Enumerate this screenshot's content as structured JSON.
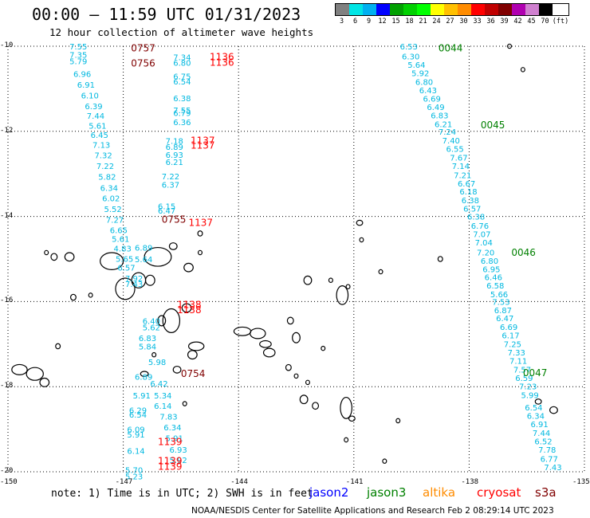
{
  "title": "00:00 – 11:59 UTC 01/31/2023",
  "subtitle": "12 hour collection of altimeter wave heights",
  "legend": {
    "swatch_colors": [
      "#808080",
      "#00e5e5",
      "#00b0f0",
      "#0000ff",
      "#00a000",
      "#00d000",
      "#00ff00",
      "#ffff00",
      "#ffc000",
      "#ff8c00",
      "#ff0000",
      "#c00000",
      "#800000",
      "#b000b0",
      "#d080d0",
      "#000000"
    ],
    "labels": [
      "3",
      "6",
      "9",
      "12",
      "15",
      "18",
      "21",
      "24",
      "27",
      "30",
      "33",
      "36",
      "39",
      "42",
      "45",
      "70",
      "(ft)"
    ]
  },
  "map": {
    "lon_range": [
      -150,
      -135
    ],
    "lat_range": [
      -20,
      -10
    ],
    "x_ticks": [
      "-150",
      "-147",
      "-144",
      "-141",
      "-138",
      "-135"
    ],
    "y_ticks": [
      "-10",
      "-12",
      "-14",
      "-16",
      "-18",
      "-20"
    ]
  },
  "time_labels": [
    {
      "text": "0757",
      "lon": -146.8,
      "lat": -10.05,
      "color": "#800000"
    },
    {
      "text": "0756",
      "lon": -146.8,
      "lat": -10.4,
      "color": "#800000"
    },
    {
      "text": "1136",
      "lon": -144.75,
      "lat": -10.25,
      "color": "#ff0000"
    },
    {
      "text": "1136",
      "lon": -144.75,
      "lat": -10.38,
      "color": "#ff0000"
    },
    {
      "text": "0044",
      "lon": -138.8,
      "lat": -10.05,
      "color": "#008000"
    },
    {
      "text": "0045",
      "lon": -137.7,
      "lat": -11.85,
      "color": "#008000"
    },
    {
      "text": "1137",
      "lon": -145.25,
      "lat": -12.22,
      "color": "#ff0000"
    },
    {
      "text": "1137",
      "lon": -145.25,
      "lat": -12.33,
      "color": "#ff0000"
    },
    {
      "text": "0755",
      "lon": -146.0,
      "lat": -14.07,
      "color": "#800000"
    },
    {
      "text": "1137",
      "lon": -145.3,
      "lat": -14.15,
      "color": "#ff0000"
    },
    {
      "text": "0046",
      "lon": -136.9,
      "lat": -14.85,
      "color": "#008000"
    },
    {
      "text": "1138",
      "lon": -145.6,
      "lat": -16.08,
      "color": "#ff0000"
    },
    {
      "text": "1138",
      "lon": -145.6,
      "lat": -16.2,
      "color": "#ff0000"
    },
    {
      "text": "0754",
      "lon": -145.5,
      "lat": -17.7,
      "color": "#800000"
    },
    {
      "text": "0047",
      "lon": -136.6,
      "lat": -17.68,
      "color": "#008000"
    },
    {
      "text": "1139",
      "lon": -146.1,
      "lat": -19.3,
      "color": "#ff0000"
    },
    {
      "text": "1139",
      "lon": -146.1,
      "lat": -19.75,
      "color": "#ff0000"
    },
    {
      "text": "1139",
      "lon": -146.1,
      "lat": -19.88,
      "color": "#ff0000"
    }
  ],
  "swh_points": [
    {
      "v": "7.55",
      "lon": -148.4,
      "lat": -10.0
    },
    {
      "v": "7.35",
      "lon": -148.4,
      "lat": -10.2
    },
    {
      "v": "5.79",
      "lon": -148.4,
      "lat": -10.35
    },
    {
      "v": "6.96",
      "lon": -148.3,
      "lat": -10.65
    },
    {
      "v": "6.91",
      "lon": -148.2,
      "lat": -10.9
    },
    {
      "v": "6.10",
      "lon": -148.1,
      "lat": -11.15
    },
    {
      "v": "6.39",
      "lon": -148.0,
      "lat": -11.4
    },
    {
      "v": "7.44",
      "lon": -147.95,
      "lat": -11.63
    },
    {
      "v": "5.61",
      "lon": -147.9,
      "lat": -11.86
    },
    {
      "v": "6.45",
      "lon": -147.85,
      "lat": -12.08
    },
    {
      "v": "7.13",
      "lon": -147.8,
      "lat": -12.31
    },
    {
      "v": "7.32",
      "lon": -147.75,
      "lat": -12.56
    },
    {
      "v": "7.22",
      "lon": -147.7,
      "lat": -12.81
    },
    {
      "v": "5.82",
      "lon": -147.65,
      "lat": -13.06
    },
    {
      "v": "6.34",
      "lon": -147.6,
      "lat": -13.32
    },
    {
      "v": "6.02",
      "lon": -147.55,
      "lat": -13.57
    },
    {
      "v": "5.52",
      "lon": -147.5,
      "lat": -13.82
    },
    {
      "v": "7.27",
      "lon": -147.45,
      "lat": -14.07
    },
    {
      "v": "6.65",
      "lon": -147.35,
      "lat": -14.32
    },
    {
      "v": "5.61",
      "lon": -147.3,
      "lat": -14.52
    },
    {
      "v": "4.83",
      "lon": -147.25,
      "lat": -14.75
    },
    {
      "v": "5.65",
      "lon": -147.2,
      "lat": -14.99
    },
    {
      "v": "6.57",
      "lon": -147.15,
      "lat": -15.2
    },
    {
      "v": "7.92",
      "lon": -146.95,
      "lat": -15.45
    },
    {
      "v": "7.43",
      "lon": -146.95,
      "lat": -15.58
    },
    {
      "v": "6.89",
      "lon": -146.7,
      "lat": -14.73
    },
    {
      "v": "5.64",
      "lon": -146.7,
      "lat": -15.0
    },
    {
      "v": "6.40",
      "lon": -146.5,
      "lat": -16.45
    },
    {
      "v": "5.62",
      "lon": -146.5,
      "lat": -16.6
    },
    {
      "v": "6.83",
      "lon": -146.6,
      "lat": -16.85
    },
    {
      "v": "5.84",
      "lon": -146.6,
      "lat": -17.05
    },
    {
      "v": "5.98",
      "lon": -146.35,
      "lat": -17.42
    },
    {
      "v": "6.89",
      "lon": -146.7,
      "lat": -17.76
    },
    {
      "v": "6.42",
      "lon": -146.3,
      "lat": -17.92
    },
    {
      "v": "5.91",
      "lon": -146.75,
      "lat": -18.2
    },
    {
      "v": "5.34",
      "lon": -146.2,
      "lat": -18.2
    },
    {
      "v": "6.14",
      "lon": -146.2,
      "lat": -18.45
    },
    {
      "v": "6.29",
      "lon": -146.85,
      "lat": -18.55
    },
    {
      "v": "6.54",
      "lon": -146.85,
      "lat": -18.65
    },
    {
      "v": "7.83",
      "lon": -146.05,
      "lat": -18.7
    },
    {
      "v": "6.34",
      "lon": -145.95,
      "lat": -18.95
    },
    {
      "v": "6.09",
      "lon": -146.9,
      "lat": -19.0
    },
    {
      "v": "5.91",
      "lon": -146.9,
      "lat": -19.12
    },
    {
      "v": "5.91",
      "lon": -145.9,
      "lat": -19.2
    },
    {
      "v": "6.93",
      "lon": -145.8,
      "lat": -19.48
    },
    {
      "v": "6.14",
      "lon": -146.9,
      "lat": -19.5
    },
    {
      "v": "5.92",
      "lon": -145.8,
      "lat": -19.72
    },
    {
      "v": "5.70",
      "lon": -146.95,
      "lat": -19.95
    },
    {
      "v": "5.23",
      "lon": -146.95,
      "lat": -20.1
    },
    {
      "v": "7.34",
      "lon": -145.7,
      "lat": -10.25
    },
    {
      "v": "6.80",
      "lon": -145.7,
      "lat": -10.38
    },
    {
      "v": "6.75",
      "lon": -145.7,
      "lat": -10.7
    },
    {
      "v": "6.54",
      "lon": -145.7,
      "lat": -10.82
    },
    {
      "v": "6.38",
      "lon": -145.7,
      "lat": -11.22
    },
    {
      "v": "7.55",
      "lon": -145.7,
      "lat": -11.5
    },
    {
      "v": "6.79",
      "lon": -145.7,
      "lat": -11.56
    },
    {
      "v": "6.36",
      "lon": -145.7,
      "lat": -11.78
    },
    {
      "v": "7.18",
      "lon": -145.9,
      "lat": -12.22
    },
    {
      "v": "6.89",
      "lon": -145.9,
      "lat": -12.36
    },
    {
      "v": "6.93",
      "lon": -145.9,
      "lat": -12.55
    },
    {
      "v": "6.21",
      "lon": -145.9,
      "lat": -12.72
    },
    {
      "v": "7.22",
      "lon": -146.0,
      "lat": -13.05
    },
    {
      "v": "6.37",
      "lon": -146.0,
      "lat": -13.25
    },
    {
      "v": "6.15",
      "lon": -146.1,
      "lat": -13.75
    },
    {
      "v": "6.47",
      "lon": -146.1,
      "lat": -13.86
    },
    {
      "v": "6.53",
      "lon": -139.8,
      "lat": -10.0
    },
    {
      "v": "6.30",
      "lon": -139.75,
      "lat": -10.23
    },
    {
      "v": "5.64",
      "lon": -139.6,
      "lat": -10.43
    },
    {
      "v": "5.92",
      "lon": -139.5,
      "lat": -10.63
    },
    {
      "v": "6.80",
      "lon": -139.4,
      "lat": -10.83
    },
    {
      "v": "6.43",
      "lon": -139.3,
      "lat": -11.03
    },
    {
      "v": "6.69",
      "lon": -139.2,
      "lat": -11.23
    },
    {
      "v": "6.49",
      "lon": -139.1,
      "lat": -11.42
    },
    {
      "v": "6.83",
      "lon": -139.0,
      "lat": -11.62
    },
    {
      "v": "6.21",
      "lon": -138.9,
      "lat": -11.83
    },
    {
      "v": "7.24",
      "lon": -138.8,
      "lat": -12.0
    },
    {
      "v": "7.40",
      "lon": -138.7,
      "lat": -12.21
    },
    {
      "v": "6.55",
      "lon": -138.6,
      "lat": -12.41
    },
    {
      "v": "7.67",
      "lon": -138.5,
      "lat": -12.61
    },
    {
      "v": "7.14",
      "lon": -138.45,
      "lat": -12.81
    },
    {
      "v": "7.21",
      "lon": -138.4,
      "lat": -13.02
    },
    {
      "v": "6.67",
      "lon": -138.3,
      "lat": -13.22
    },
    {
      "v": "6.18",
      "lon": -138.25,
      "lat": -13.41
    },
    {
      "v": "6.38",
      "lon": -138.2,
      "lat": -13.61
    },
    {
      "v": "6.57",
      "lon": -138.15,
      "lat": -13.81
    },
    {
      "v": "6.38",
      "lon": -138.05,
      "lat": -14.0
    },
    {
      "v": "6.76",
      "lon": -137.95,
      "lat": -14.21
    },
    {
      "v": "7.07",
      "lon": -137.9,
      "lat": -14.41
    },
    {
      "v": "7.04",
      "lon": -137.85,
      "lat": -14.61
    },
    {
      "v": "7.20",
      "lon": -137.8,
      "lat": -14.84
    },
    {
      "v": "6.80",
      "lon": -137.7,
      "lat": -15.04
    },
    {
      "v": "6.95",
      "lon": -137.65,
      "lat": -15.23
    },
    {
      "v": "6.46",
      "lon": -137.6,
      "lat": -15.42
    },
    {
      "v": "6.58",
      "lon": -137.55,
      "lat": -15.62
    },
    {
      "v": "5.66",
      "lon": -137.45,
      "lat": -15.82
    },
    {
      "v": "7.53",
      "lon": -137.4,
      "lat": -16.0
    },
    {
      "v": "6.87",
      "lon": -137.35,
      "lat": -16.2
    },
    {
      "v": "6.47",
      "lon": -137.3,
      "lat": -16.39
    },
    {
      "v": "6.69",
      "lon": -137.2,
      "lat": -16.59
    },
    {
      "v": "6.17",
      "lon": -137.15,
      "lat": -16.79
    },
    {
      "v": "7.25",
      "lon": -137.1,
      "lat": -16.99
    },
    {
      "v": "7.33",
      "lon": -137.0,
      "lat": -17.19
    },
    {
      "v": "7.11",
      "lon": -136.95,
      "lat": -17.39
    },
    {
      "v": "7.57",
      "lon": -136.85,
      "lat": -17.59
    },
    {
      "v": "6.59",
      "lon": -136.8,
      "lat": -17.79
    },
    {
      "v": "7.23",
      "lon": -136.7,
      "lat": -17.99
    },
    {
      "v": "5.99",
      "lon": -136.65,
      "lat": -18.19
    },
    {
      "v": "6.54",
      "lon": -136.55,
      "lat": -18.48
    },
    {
      "v": "6.34",
      "lon": -136.5,
      "lat": -18.68
    },
    {
      "v": "6.91",
      "lon": -136.4,
      "lat": -18.88
    },
    {
      "v": "7.44",
      "lon": -136.35,
      "lat": -19.08
    },
    {
      "v": "6.52",
      "lon": -136.3,
      "lat": -19.28
    },
    {
      "v": "7.78",
      "lon": -136.2,
      "lat": -19.48
    },
    {
      "v": "6.77",
      "lon": -136.15,
      "lat": -19.69
    },
    {
      "v": "7.43",
      "lon": -136.05,
      "lat": -19.89
    }
  ],
  "note": "note: 1) Time is in UTC; 2) SWH is in feet",
  "satellites": [
    {
      "name": "jason2",
      "color": "#0000ff"
    },
    {
      "name": "jason3",
      "color": "#008000"
    },
    {
      "name": "altika",
      "color": "#ff8c00"
    },
    {
      "name": "cryosat",
      "color": "#ff0000"
    },
    {
      "name": "s3a",
      "color": "#800000"
    }
  ],
  "credit": "NOAA/NESDIS Center for Satellite Applications and Research   Feb  2 08:29:14 UTC 2023"
}
